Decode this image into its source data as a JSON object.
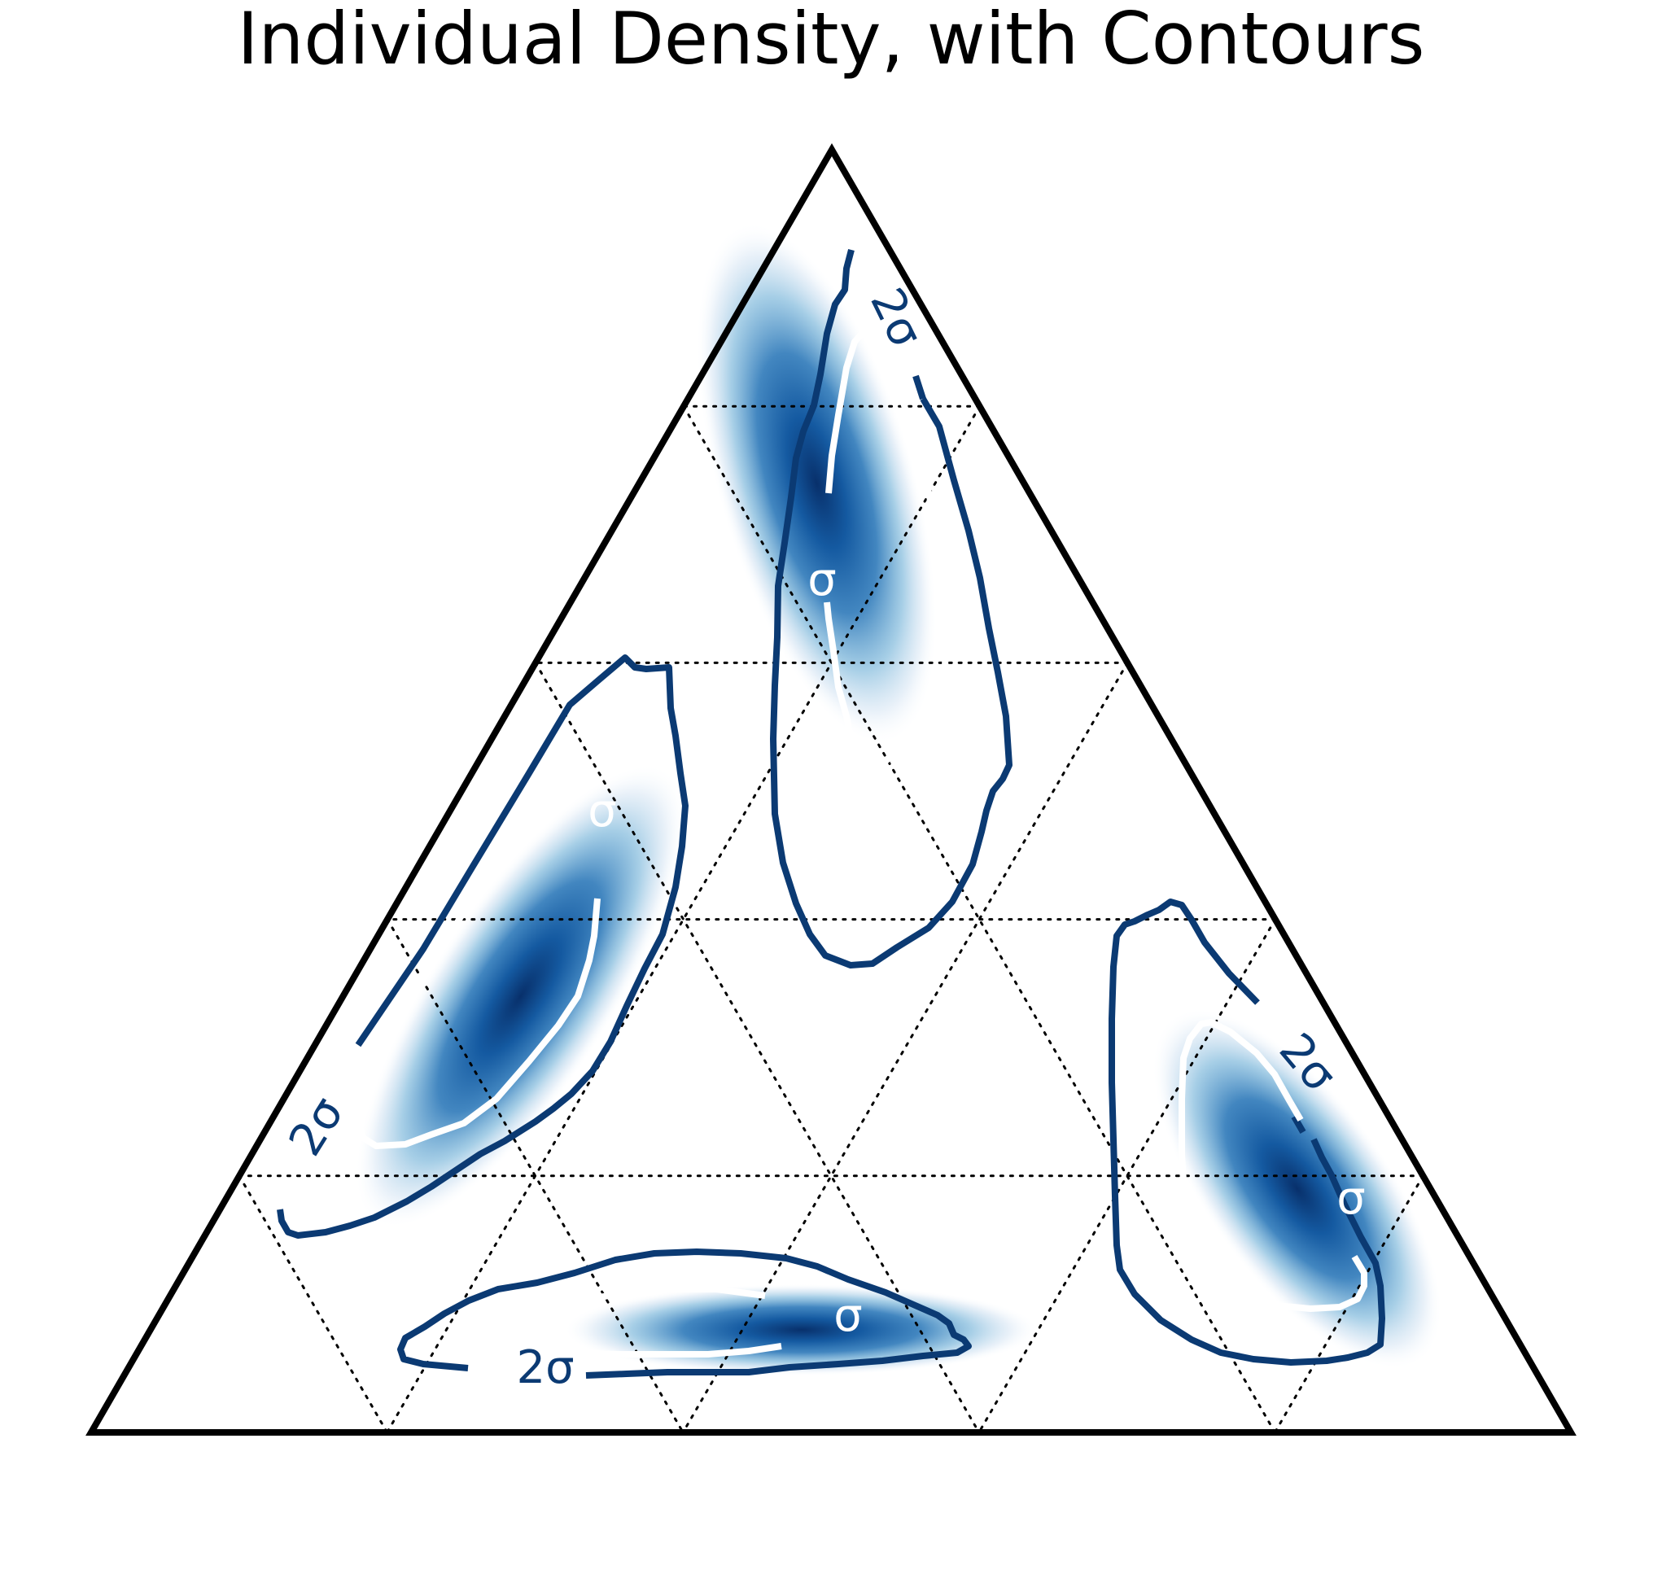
{
  "chart_data": {
    "type": "ternary-density-contour",
    "title": "Individual Density, with Contours",
    "grid": true,
    "gridlines_per_side": [
      0.2,
      0.4,
      0.6,
      0.8
    ],
    "colors": {
      "frame": "#000000",
      "outer_contour": "#0b3a73",
      "inner_contour": "#ffffff",
      "density_low": "#f7fbff",
      "density_high": "#08306b"
    },
    "contour_levels": [
      "σ",
      "2σ"
    ],
    "series": [
      {
        "region": "top",
        "peak": [
          0.74,
          0.12,
          0.14
        ],
        "contour_labels": [
          {
            "level": "2σ",
            "ring": "outer"
          },
          {
            "level": "σ",
            "ring": "inner"
          }
        ]
      },
      {
        "region": "left",
        "peak": [
          0.34,
          0.12,
          0.54
        ],
        "contour_labels": [
          {
            "level": "2σ",
            "ring": "outer"
          },
          {
            "level": "σ",
            "ring": "inner"
          }
        ]
      },
      {
        "region": "bottom",
        "peak": [
          0.08,
          0.44,
          0.48
        ],
        "contour_labels": [
          {
            "level": "2σ",
            "ring": "outer"
          },
          {
            "level": "σ",
            "ring": "inner"
          }
        ]
      },
      {
        "region": "right",
        "peak": [
          0.19,
          0.72,
          0.09
        ],
        "contour_labels": [
          {
            "level": "2σ",
            "ring": "outer"
          },
          {
            "level": "σ",
            "ring": "inner"
          }
        ]
      }
    ]
  }
}
